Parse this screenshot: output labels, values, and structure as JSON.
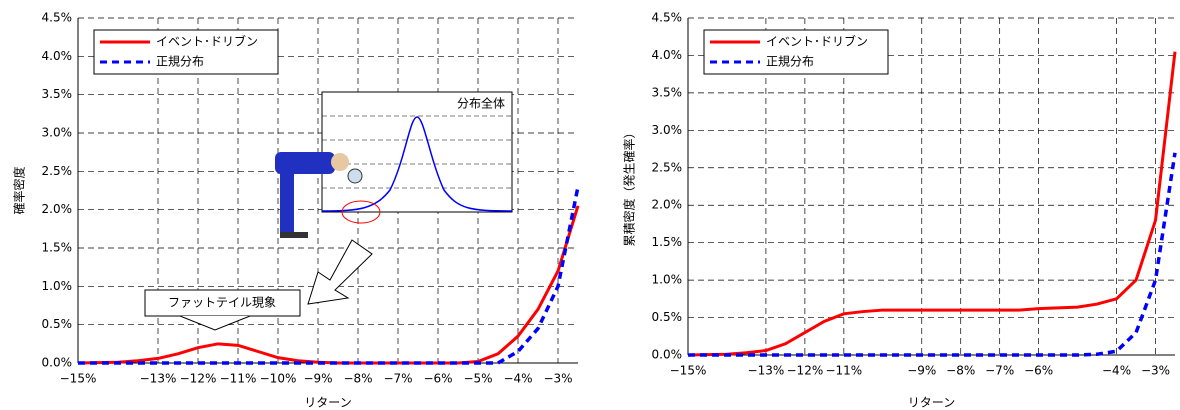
{
  "chart_data": [
    {
      "type": "line",
      "ylabel": "確率密度",
      "xlabel": "リターン",
      "x": [
        -15,
        -14.5,
        -14,
        -13.5,
        -13,
        -12.5,
        -12,
        -11.5,
        -11,
        -10.5,
        -10,
        -9.5,
        -9,
        -8.5,
        -8,
        -7.5,
        -7,
        -6.5,
        -6,
        -5.5,
        -5,
        -4.5,
        -4,
        -3.5,
        -3,
        -2.5
      ],
      "series": [
        {
          "name": "イベント･ドリブン",
          "color": "#ff0000",
          "values": [
            0,
            0.005,
            0.01,
            0.03,
            0.06,
            0.12,
            0.2,
            0.25,
            0.23,
            0.15,
            0.07,
            0.03,
            0.01,
            0,
            0,
            0,
            0,
            0,
            0,
            0,
            0.02,
            0.12,
            0.35,
            0.7,
            1.2,
            2.05
          ]
        },
        {
          "name": "正規分布",
          "color": "#0000ff",
          "values": [
            0,
            0,
            0,
            0,
            0,
            0,
            0,
            0,
            0,
            0,
            0,
            0,
            0,
            0,
            0,
            0,
            0,
            0,
            0,
            0,
            0,
            0,
            0.15,
            0.45,
            1.0,
            2.3
          ]
        }
      ],
      "xlim": [
        -15,
        -2.5
      ],
      "xticks": [
        {
          "value": -15,
          "label": "−15%"
        },
        {
          "value": -13,
          "label": "−13%"
        },
        {
          "value": -12,
          "label": "−12%"
        },
        {
          "value": -11,
          "label": "−11%"
        },
        {
          "value": -10,
          "label": "−10%"
        },
        {
          "value": -9,
          "label": "−9%"
        },
        {
          "value": -8,
          "label": "−8%"
        },
        {
          "value": -7,
          "label": "−7%"
        },
        {
          "value": -6,
          "label": "−6%"
        },
        {
          "value": -5,
          "label": "−5%"
        },
        {
          "value": -4,
          "label": "−4%"
        },
        {
          "value": -3,
          "label": "−3%"
        }
      ],
      "ylim": [
        0,
        4.5
      ],
      "yticks": [
        {
          "value": 0,
          "label": "0.0%"
        },
        {
          "value": 0.5,
          "label": "0.5%"
        },
        {
          "value": 1,
          "label": "1.0%"
        },
        {
          "value": 1.5,
          "label": "1.5%"
        },
        {
          "value": 2,
          "label": "2.0%"
        },
        {
          "value": 2.5,
          "label": "2.5%"
        },
        {
          "value": 3,
          "label": "3.0%"
        },
        {
          "value": 3.5,
          "label": "3.5%"
        },
        {
          "value": 4,
          "label": "4.0%"
        },
        {
          "value": 4.5,
          "label": "4.5%"
        }
      ],
      "grid": true,
      "legend": "upper left",
      "annotations": [
        "ファットテイル現象",
        "分布全体"
      ]
    },
    {
      "type": "line",
      "ylabel": "累積密度（発生確率）",
      "xlabel": "リターン",
      "x": [
        -15,
        -14.5,
        -14,
        -13.5,
        -13,
        -12.5,
        -12,
        -11.5,
        -11,
        -10.5,
        -10,
        -9.5,
        -9,
        -8.5,
        -8,
        -7.5,
        -7,
        -6.5,
        -6,
        -5.5,
        -5,
        -4.5,
        -4,
        -3.5,
        -3,
        -2.5
      ],
      "series": [
        {
          "name": "イベント･ドリブン",
          "color": "#ff0000",
          "values": [
            0,
            0.005,
            0.01,
            0.03,
            0.06,
            0.15,
            0.3,
            0.45,
            0.55,
            0.58,
            0.6,
            0.6,
            0.6,
            0.6,
            0.6,
            0.6,
            0.6,
            0.6,
            0.62,
            0.63,
            0.64,
            0.68,
            0.75,
            1.0,
            1.8,
            4.05
          ]
        },
        {
          "name": "正規分布",
          "color": "#0000ff",
          "values": [
            0,
            0,
            0,
            0,
            0,
            0,
            0,
            0,
            0,
            0,
            0,
            0,
            0,
            0,
            0,
            0,
            0,
            0,
            0,
            0,
            0,
            0.01,
            0.05,
            0.3,
            1.0,
            2.7
          ]
        }
      ],
      "xlim": [
        -15,
        -2.5
      ],
      "xticks": [
        {
          "value": -15,
          "label": "−15%"
        },
        {
          "value": -13,
          "label": "−13%"
        },
        {
          "value": -12,
          "label": "−12%"
        },
        {
          "value": -11,
          "label": "−11%"
        },
        {
          "value": -9,
          "label": "−9%"
        },
        {
          "value": -8,
          "label": "−8%"
        },
        {
          "value": -7,
          "label": "−7%"
        },
        {
          "value": -6,
          "label": "−6%"
        },
        {
          "value": -4,
          "label": "−4%"
        },
        {
          "value": -3,
          "label": "−3%"
        }
      ],
      "ylim": [
        0,
        4.5
      ],
      "yticks": [
        {
          "value": 0,
          "label": "0.0%"
        },
        {
          "value": 0.5,
          "label": "0.5%"
        },
        {
          "value": 1,
          "label": "1.0%"
        },
        {
          "value": 1.5,
          "label": "1.5%"
        },
        {
          "value": 2,
          "label": "2.0%"
        },
        {
          "value": 2.5,
          "label": "2.5%"
        },
        {
          "value": 3,
          "label": "3.0%"
        },
        {
          "value": 3.5,
          "label": "3.5%"
        },
        {
          "value": 4,
          "label": "4.0%"
        },
        {
          "value": 4.5,
          "label": "4.5%"
        }
      ],
      "grid": true,
      "legend": "upper left"
    }
  ]
}
